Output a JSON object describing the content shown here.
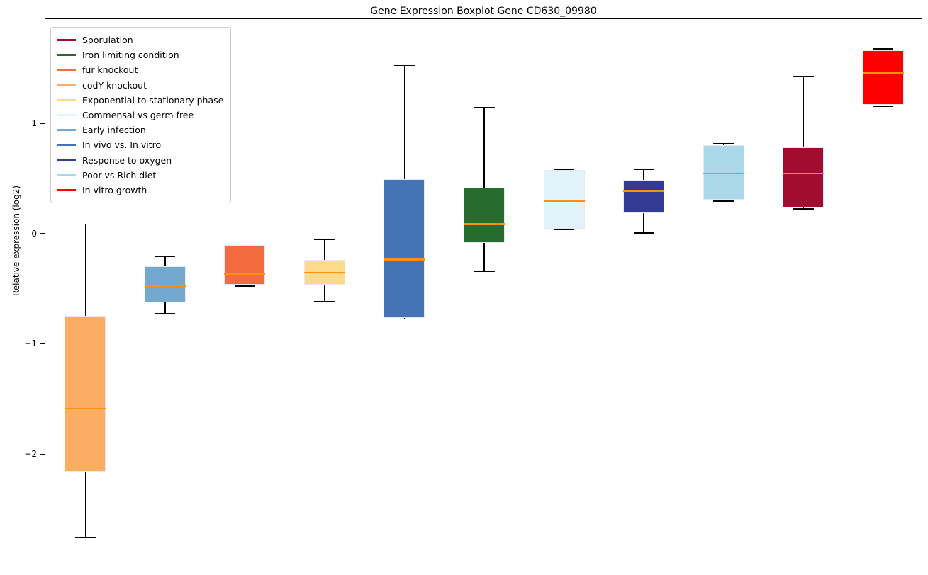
{
  "title": "Gene Expression Boxplot Gene CD630_09980",
  "ylabel": "Relative expression (log2)",
  "chart_data": {
    "type": "boxplot",
    "title": "Gene Expression Boxplot Gene CD630_09980",
    "xlabel": "",
    "ylabel": "Relative expression (log2)",
    "ylim": [
      -3.0,
      1.95
    ],
    "yticks": [
      1,
      0,
      -1,
      -2
    ],
    "ytick_labels": [
      "1",
      "0",
      "−1",
      "−2"
    ],
    "grid": false,
    "x_tick_labels_shown": false,
    "legend_position": "upper left",
    "median_color": "#FF8F0E",
    "whisker_color": "#000000",
    "box_edge_color": "#E8E8F4",
    "legend": [
      {
        "label": "Sporulation",
        "color": "#A10C2F"
      },
      {
        "label": "Iron limiting condition",
        "color": "#256C2E"
      },
      {
        "label": "fur knockout",
        "color": "#F46B40"
      },
      {
        "label": "codY knockout",
        "color": "#FBAD61"
      },
      {
        "label": "Exponential to stationary phase",
        "color": "#FDD98A"
      },
      {
        "label": "Commensal vs germ free",
        "color": "#E2F3F9"
      },
      {
        "label": "Early infection",
        "color": "#73A9CF"
      },
      {
        "label": "In vivo vs. In vitro",
        "color": "#4473B6"
      },
      {
        "label": "Response to oxygen",
        "color": "#333B94"
      },
      {
        "label": "Poor vs Rich diet",
        "color": "#ABD8E8"
      },
      {
        "label": "In vitro growth",
        "color": "#FF0000"
      }
    ],
    "series": [
      {
        "name": "codY knockout",
        "color": "#FBAD61",
        "whisker_low": -2.75,
        "q1": -2.15,
        "median": -1.58,
        "q3": -0.74,
        "whisker_high": 0.09
      },
      {
        "name": "Early infection",
        "color": "#73A9CF",
        "whisker_low": -0.72,
        "q1": -0.62,
        "median": -0.47,
        "q3": -0.29,
        "whisker_high": -0.2
      },
      {
        "name": "fur knockout",
        "color": "#F46B40",
        "whisker_low": -0.47,
        "q1": -0.46,
        "median": -0.36,
        "q3": -0.1,
        "whisker_high": -0.09
      },
      {
        "name": "Exponential to stationary phase",
        "color": "#FDD98A",
        "whisker_low": -0.61,
        "q1": -0.46,
        "median": -0.35,
        "q3": -0.23,
        "whisker_high": -0.05
      },
      {
        "name": "In vivo vs. In vitro",
        "color": "#4473B6",
        "whisker_low": -0.77,
        "q1": -0.76,
        "median": -0.23,
        "q3": 0.5,
        "whisker_high": 1.53
      },
      {
        "name": "Iron limiting condition",
        "color": "#256C2E",
        "whisker_low": -0.34,
        "q1": -0.08,
        "median": 0.09,
        "q3": 0.42,
        "whisker_high": 1.15
      },
      {
        "name": "Commensal vs germ free",
        "color": "#E2F3F9",
        "whisker_low": 0.04,
        "q1": 0.05,
        "median": 0.3,
        "q3": 0.58,
        "whisker_high": 0.59
      },
      {
        "name": "Response to oxygen",
        "color": "#333B94",
        "whisker_low": 0.01,
        "q1": 0.19,
        "median": 0.39,
        "q3": 0.49,
        "whisker_high": 0.59
      },
      {
        "name": "Poor vs Rich diet",
        "color": "#ABD8E8",
        "whisker_low": 0.3,
        "q1": 0.31,
        "median": 0.55,
        "q3": 0.81,
        "whisker_high": 0.82
      },
      {
        "name": "Sporulation",
        "color": "#A10C2F",
        "whisker_low": 0.23,
        "q1": 0.24,
        "median": 0.55,
        "q3": 0.79,
        "whisker_high": 1.43
      },
      {
        "name": "In vitro growth",
        "color": "#FF0000",
        "whisker_low": 1.16,
        "q1": 1.17,
        "median": 1.46,
        "q3": 1.67,
        "whisker_high": 1.68
      }
    ]
  }
}
